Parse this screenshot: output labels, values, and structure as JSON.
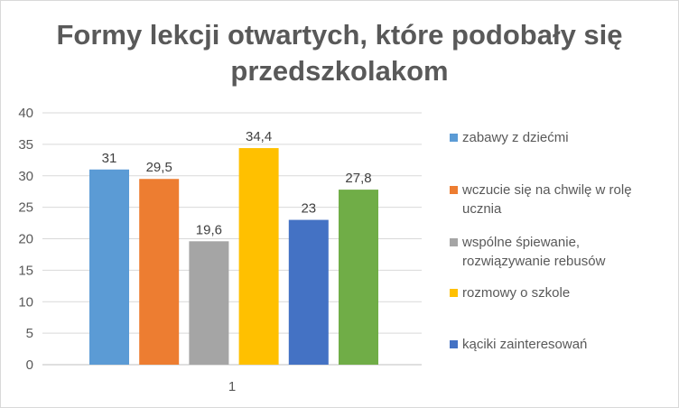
{
  "chart_data": {
    "type": "bar",
    "title": "Formy lekcji otwartych, które podobały się przedszkolakom",
    "categories": [
      "1"
    ],
    "ylim": [
      0,
      40
    ],
    "yticks": [
      0,
      5,
      10,
      15,
      20,
      25,
      30,
      35,
      40
    ],
    "grid": true,
    "legend_position": "right",
    "series": [
      {
        "name": "zabawy z dziećmi",
        "values": [
          31
        ],
        "label": "31",
        "color": "#5b9bd5"
      },
      {
        "name": "wczucie się na chwilę w rolę ucznia",
        "values": [
          29.5
        ],
        "label": "29,5",
        "color": "#ed7d31"
      },
      {
        "name": "wspólne śpiewanie, rozwiązywanie rebusów",
        "values": [
          19.6
        ],
        "label": "19,6",
        "color": "#a5a5a5"
      },
      {
        "name": "rozmowy o szkole",
        "values": [
          34.4
        ],
        "label": "34,4",
        "color": "#ffc000"
      },
      {
        "name": "kąciki zainteresowań",
        "values": [
          23
        ],
        "label": "23",
        "color": "#4472c4"
      },
      {
        "name": "",
        "values": [
          27.8
        ],
        "label": "27,8",
        "color": "#70ad47"
      }
    ]
  }
}
